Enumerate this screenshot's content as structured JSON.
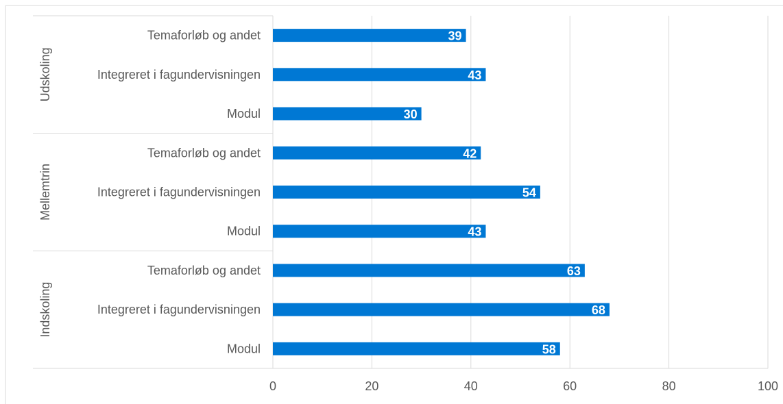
{
  "chart_data": {
    "type": "bar",
    "orientation": "horizontal",
    "groups": [
      {
        "name": "Udskoling",
        "items": [
          {
            "label": "Temaforløb og andet",
            "value": 39
          },
          {
            "label": "Integreret i fagundervisningen",
            "value": 43
          },
          {
            "label": "Modul",
            "value": 30
          }
        ]
      },
      {
        "name": "Mellemtrin",
        "items": [
          {
            "label": "Temaforløb og andet",
            "value": 42
          },
          {
            "label": "Integreret i fagundervisningen",
            "value": 54
          },
          {
            "label": "Modul",
            "value": 43
          }
        ]
      },
      {
        "name": "Indskoling",
        "items": [
          {
            "label": "Temaforløb og andet",
            "value": 63
          },
          {
            "label": "Integreret i fagundervisningen",
            "value": 68
          },
          {
            "label": "Modul",
            "value": 58
          }
        ]
      }
    ],
    "xlim": [
      0,
      100
    ],
    "xticks": [
      0,
      20,
      40,
      60,
      80,
      100
    ],
    "xtick_labels": [
      "0",
      "20",
      "40",
      "60",
      "80",
      "100"
    ],
    "bar_color": "#0078d4",
    "grid": true,
    "data_labels": true,
    "legend": "none"
  }
}
